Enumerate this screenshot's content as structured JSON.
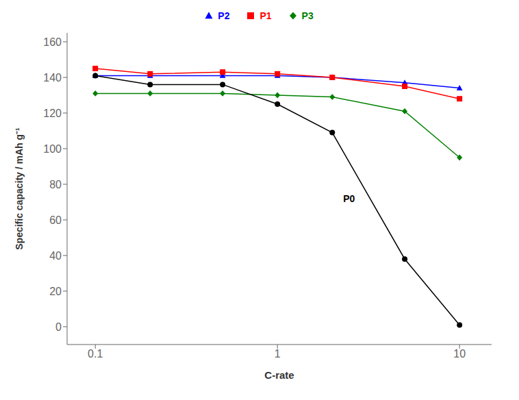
{
  "chart_data": {
    "type": "line",
    "xlabel": "C-rate",
    "ylabel": "Specific capacity / mAh g⁻¹",
    "x": [
      0.1,
      0.2,
      0.5,
      1,
      2,
      5,
      10
    ],
    "series": [
      {
        "name": "P2",
        "color": "#0000ff",
        "marker": "triangle",
        "values": [
          141,
          141,
          141,
          141,
          140,
          137,
          134
        ]
      },
      {
        "name": "P1",
        "color": "#ff0000",
        "marker": "square",
        "values": [
          145,
          142,
          143,
          142,
          140,
          135,
          128
        ]
      },
      {
        "name": "P3",
        "color": "#008000",
        "marker": "diamond",
        "values": [
          131,
          131,
          131,
          130,
          129,
          121,
          95
        ]
      },
      {
        "name": "P0",
        "color": "#000000",
        "marker": "circle",
        "values": [
          141,
          136,
          136,
          125,
          109,
          38,
          1
        ]
      }
    ],
    "xlim": [
      0.07,
      15
    ],
    "ylim": [
      -10,
      165
    ],
    "xticks": [
      0.1,
      1,
      10
    ],
    "yticks": [
      0,
      20,
      40,
      60,
      80,
      100,
      120,
      140,
      160
    ],
    "log": "x",
    "grid": false,
    "legend": "top",
    "annotations": [
      {
        "text": "P0",
        "x": 2.2,
        "y": 72
      }
    ]
  }
}
